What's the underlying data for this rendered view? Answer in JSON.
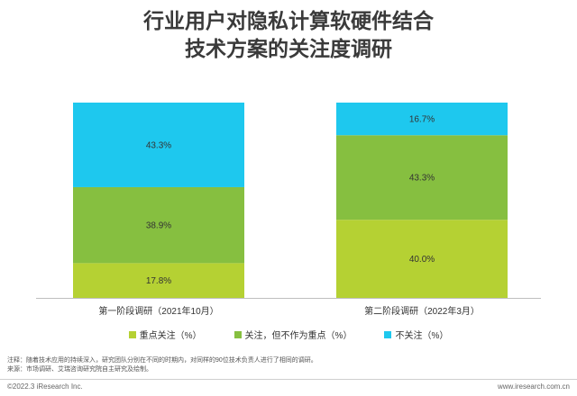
{
  "title": {
    "line1": "行业用户对隐私计算软硬件结合",
    "line2": "技术方案的关注度调研"
  },
  "chart_data": {
    "type": "bar",
    "stacked": true,
    "categories": [
      "第一阶段调研（2021年10月）",
      "第二阶段调研（2022年3月）"
    ],
    "series": [
      {
        "name": "重点关注（%）",
        "values": [
          17.8,
          40.0
        ],
        "labels": [
          "17.8%",
          "40.0%"
        ],
        "color": "#b5d133"
      },
      {
        "name": "关注，但不作为重点（%）",
        "values": [
          38.9,
          43.3
        ],
        "labels": [
          "38.9%",
          "43.3%"
        ],
        "color": "#86bf40"
      },
      {
        "name": "不关注（%）",
        "values": [
          43.3,
          16.7
        ],
        "labels": [
          "43.3%",
          "16.7%"
        ],
        "color": "#1ec8ee"
      }
    ],
    "ylim": [
      0,
      100
    ],
    "grid": false,
    "legend_position": "bottom"
  },
  "notes": {
    "line1": "注释：随着技术应用的持续深入，研究团队分别在不同的时期内，对同样的90位技术负责人进行了相同的调研。",
    "line2": "来源：市场调研、艾瑞咨询研究院自主研究及绘制。"
  },
  "footer": {
    "copyright": "©2022.3 iResearch Inc.",
    "website": "www.iresearch.com.cn"
  }
}
